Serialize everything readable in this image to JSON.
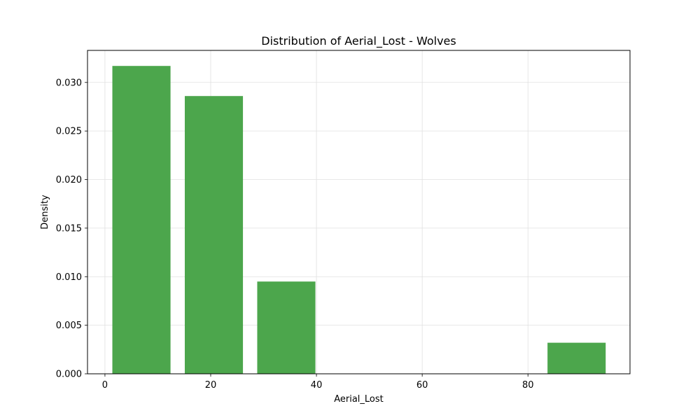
{
  "chart_data": {
    "type": "bar",
    "title": "Distribution of Aerial_Lost - Wolves",
    "xlabel": "Aerial_Lost",
    "ylabel": "Density",
    "xlim": [
      -3.3,
      99.3
    ],
    "ylim": [
      0,
      0.0333
    ],
    "xticks": [
      0,
      20,
      40,
      60,
      80
    ],
    "yticks": [
      0.0,
      0.005,
      0.01,
      0.015,
      0.02,
      0.025,
      0.03
    ],
    "ytick_labels": [
      "0.000",
      "0.005",
      "0.010",
      "0.015",
      "0.020",
      "0.025",
      "0.030"
    ],
    "grid": true,
    "bar_color": "#4ca64c",
    "bins": [
      {
        "x_start": 1.4,
        "x_end": 12.4,
        "density": 0.0317
      },
      {
        "x_start": 15.1,
        "x_end": 26.1,
        "density": 0.0286
      },
      {
        "x_start": 28.8,
        "x_end": 39.8,
        "density": 0.0095
      },
      {
        "x_start": 83.7,
        "x_end": 94.7,
        "density": 0.0032
      }
    ]
  }
}
